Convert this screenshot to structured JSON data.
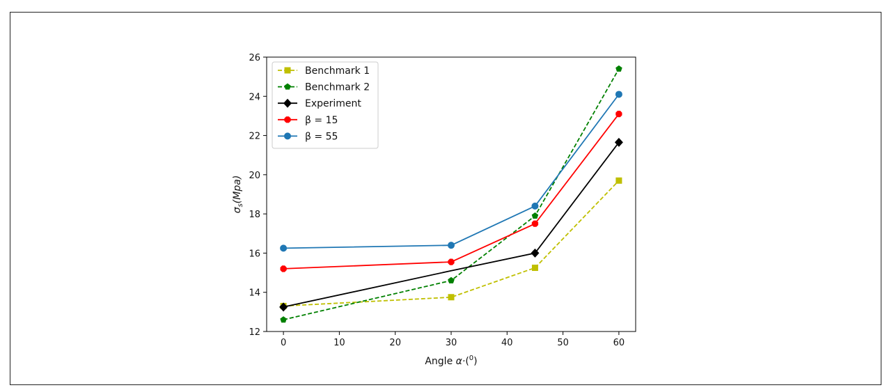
{
  "chart_data": {
    "type": "line",
    "title": "",
    "xlabel_main": "Angle ",
    "xlabel_symbol": "α·",
    "xlabel_unit": "(0)",
    "ylabel_symbol": "σs",
    "ylabel_unit": "(Mpa)",
    "xlim": [
      -3,
      63
    ],
    "ylim": [
      12,
      26
    ],
    "xticks": [
      0,
      10,
      20,
      30,
      40,
      50,
      60
    ],
    "yticks": [
      12,
      14,
      16,
      18,
      20,
      22,
      24,
      26
    ],
    "grid": false,
    "legend_position": "top-left",
    "x": [
      0,
      30,
      45,
      60
    ],
    "series": [
      {
        "name": "Benchmark 1",
        "values": [
          13.3,
          13.75,
          15.25,
          19.7
        ],
        "color": "#bfbf00",
        "dash": true,
        "marker": "square"
      },
      {
        "name": "Benchmark 2",
        "values": [
          12.6,
          14.6,
          17.9,
          25.4
        ],
        "color": "#008000",
        "dash": true,
        "marker": "pentagon"
      },
      {
        "name": "Experiment",
        "values": [
          13.25,
          15.1,
          16.0,
          21.65
        ],
        "x": [
          0,
          30,
          45,
          60
        ],
        "color": "#000000",
        "dash": false,
        "marker": "diamond",
        "marker_idx": [
          0,
          2,
          3
        ]
      },
      {
        "name": "β = 15",
        "values": [
          15.2,
          15.55,
          17.5,
          23.1
        ],
        "color": "#ff0000",
        "dash": false,
        "marker": "octagon"
      },
      {
        "name": "β = 55",
        "values": [
          16.25,
          16.4,
          18.4,
          24.1
        ],
        "color": "#1f77b4",
        "dash": false,
        "marker": "circle"
      }
    ]
  }
}
